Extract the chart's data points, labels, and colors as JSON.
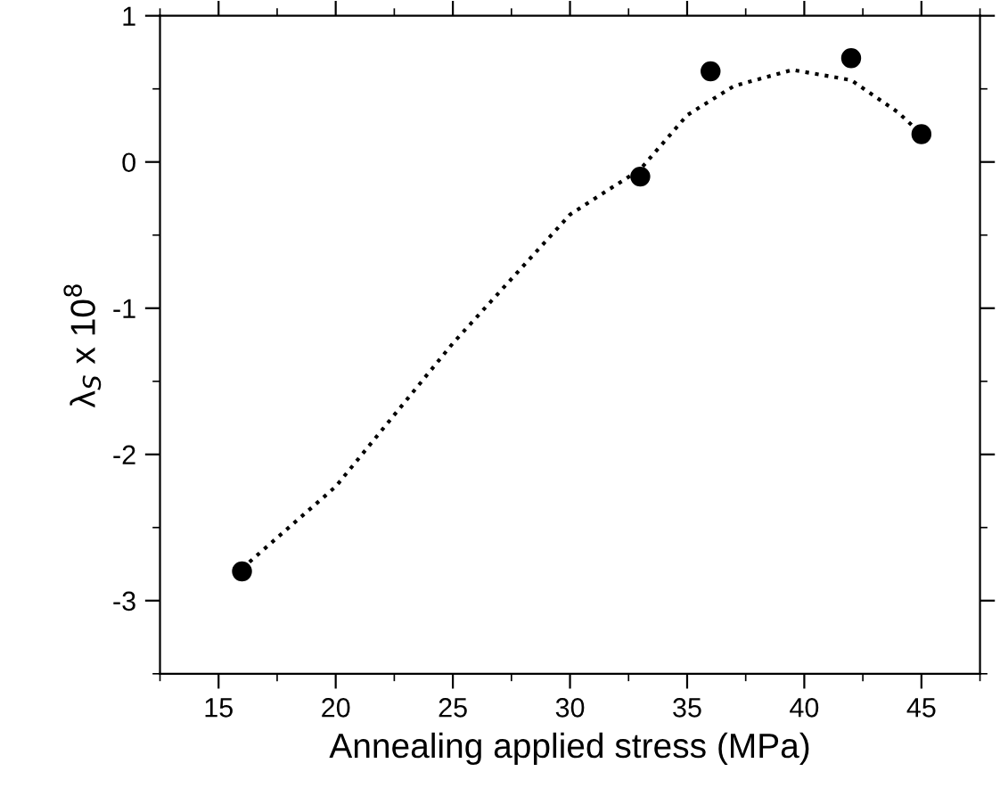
{
  "chart_data": {
    "type": "scatter",
    "xlabel": "Annealing applied stress (MPa)",
    "ylabel": "λ$_{S}$ x 10$^{8}$",
    "series": [
      {
        "color": "#000000",
        "marker": "circle",
        "x": [
          16,
          33,
          36,
          42,
          45
        ],
        "values": [
          -2.8,
          -0.1,
          0.62,
          0.71,
          0.19
        ]
      },
      {
        "type": "line",
        "color": "#000000",
        "line_style": "dotted",
        "marker": "none",
        "x": [
          16,
          20,
          25,
          30,
          33,
          35,
          37,
          39.5,
          42,
          44,
          45
        ],
        "values": [
          -2.78,
          -2.22,
          -1.24,
          -0.36,
          -0.05,
          0.32,
          0.52,
          0.63,
          0.56,
          0.34,
          0.19
        ]
      }
    ],
    "xlim": [
      12.5,
      47.5
    ],
    "xticks": [
      15,
      20,
      25,
      30,
      35,
      40,
      45
    ],
    "ylim": [
      -3.5,
      1
    ],
    "yticks": [
      {
        "value": -3,
        "label": "-3"
      },
      {
        "value": -2,
        "label": "-2"
      },
      {
        "value": -1,
        "label": "-1"
      },
      0,
      1
    ],
    "grid": false,
    "legend": false
  }
}
